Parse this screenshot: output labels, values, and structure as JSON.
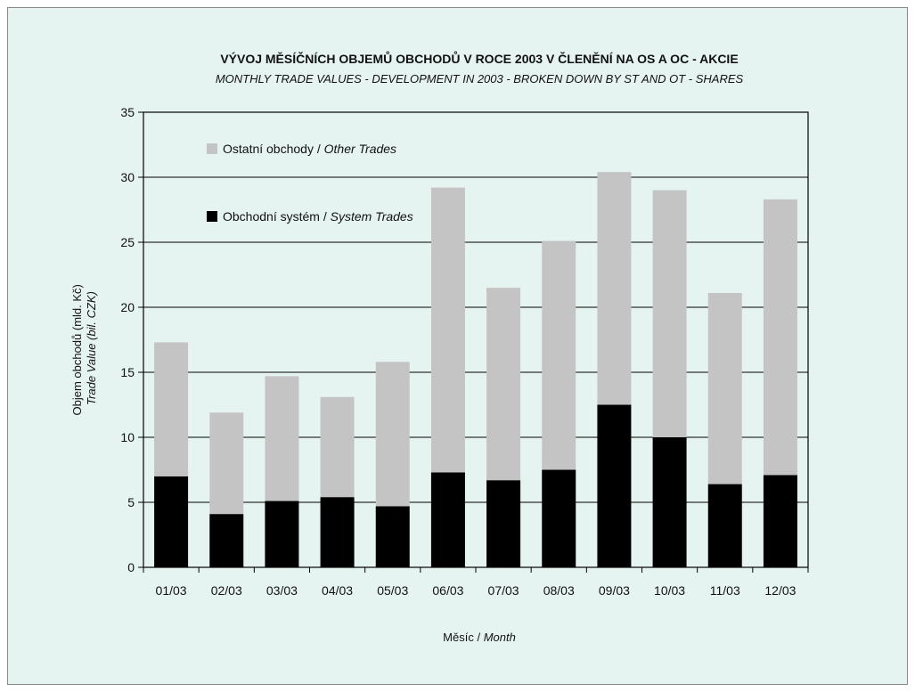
{
  "chart_data": {
    "type": "bar",
    "stacked": true,
    "title": "VÝVOJ MĚSÍČNÍCH OBJEMŮ OBCHODŮ V ROCE 2003 V ČLENĚNÍ NA OS A OC - AKCIE",
    "subtitle": "MONTHLY TRADE VALUES - DEVELOPMENT IN 2003 - BROKEN DOWN BY ST AND OT - SHARES",
    "xlabel": {
      "cz": "Měsíc / ",
      "en": "Month"
    },
    "ylabel": {
      "cz": "Objem obchodů (mld. Kč)",
      "en": "Trade Value (bil. CZK)"
    },
    "ylim": [
      0,
      35
    ],
    "yticks": [
      0,
      5,
      10,
      15,
      20,
      25,
      30,
      35
    ],
    "grid": true,
    "legend_position": "top-left",
    "categories": [
      "01/03",
      "02/03",
      "03/03",
      "04/03",
      "05/03",
      "06/03",
      "07/03",
      "08/03",
      "09/03",
      "10/03",
      "11/03",
      "12/03"
    ],
    "series": [
      {
        "name": "Obchodní systém / System Trades",
        "legend_cz": "Obchodní systém / ",
        "legend_en": "System Trades",
        "color": "#000000",
        "values": [
          7.0,
          4.1,
          5.1,
          5.4,
          4.7,
          7.3,
          6.7,
          7.5,
          12.5,
          10.0,
          6.4,
          7.1
        ]
      },
      {
        "name": "Ostatní obchody / Other Trades",
        "legend_cz": "Ostatní obchody / ",
        "legend_en": "Other Trades",
        "color": "#c4c4c4",
        "values": [
          10.3,
          7.8,
          9.6,
          7.7,
          11.1,
          21.9,
          14.8,
          17.6,
          17.9,
          19.0,
          14.7,
          21.2
        ]
      }
    ],
    "colors": {
      "background": "#e6f4f1",
      "grid": "#000000"
    }
  }
}
